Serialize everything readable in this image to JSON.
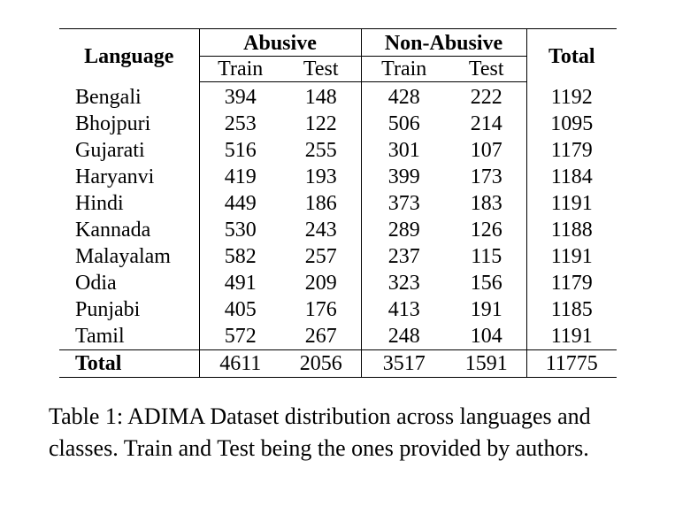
{
  "table": {
    "header": {
      "language": "Language",
      "abusive": "Abusive",
      "non_abusive": "Non-Abusive",
      "total": "Total",
      "train": "Train",
      "test": "Test"
    },
    "rows": [
      {
        "language": "Bengali",
        "ab_train": "394",
        "ab_test": "148",
        "na_train": "428",
        "na_test": "222",
        "total": "1192"
      },
      {
        "language": "Bhojpuri",
        "ab_train": "253",
        "ab_test": "122",
        "na_train": "506",
        "na_test": "214",
        "total": "1095"
      },
      {
        "language": "Gujarati",
        "ab_train": "516",
        "ab_test": "255",
        "na_train": "301",
        "na_test": "107",
        "total": "1179"
      },
      {
        "language": "Haryanvi",
        "ab_train": "419",
        "ab_test": "193",
        "na_train": "399",
        "na_test": "173",
        "total": "1184"
      },
      {
        "language": "Hindi",
        "ab_train": "449",
        "ab_test": "186",
        "na_train": "373",
        "na_test": "183",
        "total": "1191"
      },
      {
        "language": "Kannada",
        "ab_train": "530",
        "ab_test": "243",
        "na_train": "289",
        "na_test": "126",
        "total": "1188"
      },
      {
        "language": "Malayalam",
        "ab_train": "582",
        "ab_test": "257",
        "na_train": "237",
        "na_test": "115",
        "total": "1191"
      },
      {
        "language": "Odia",
        "ab_train": "491",
        "ab_test": "209",
        "na_train": "323",
        "na_test": "156",
        "total": "1179"
      },
      {
        "language": "Punjabi",
        "ab_train": "405",
        "ab_test": "176",
        "na_train": "413",
        "na_test": "191",
        "total": "1185"
      },
      {
        "language": "Tamil",
        "ab_train": "572",
        "ab_test": "267",
        "na_train": "248",
        "na_test": "104",
        "total": "1191"
      }
    ],
    "total_row": {
      "language": "Total",
      "ab_train": "4611",
      "ab_test": "2056",
      "na_train": "3517",
      "na_test": "1591",
      "total": "11775"
    }
  },
  "caption": "Table 1: ADIMA Dataset distribution across languages and classes. Train and Test being the ones provided by authors."
}
